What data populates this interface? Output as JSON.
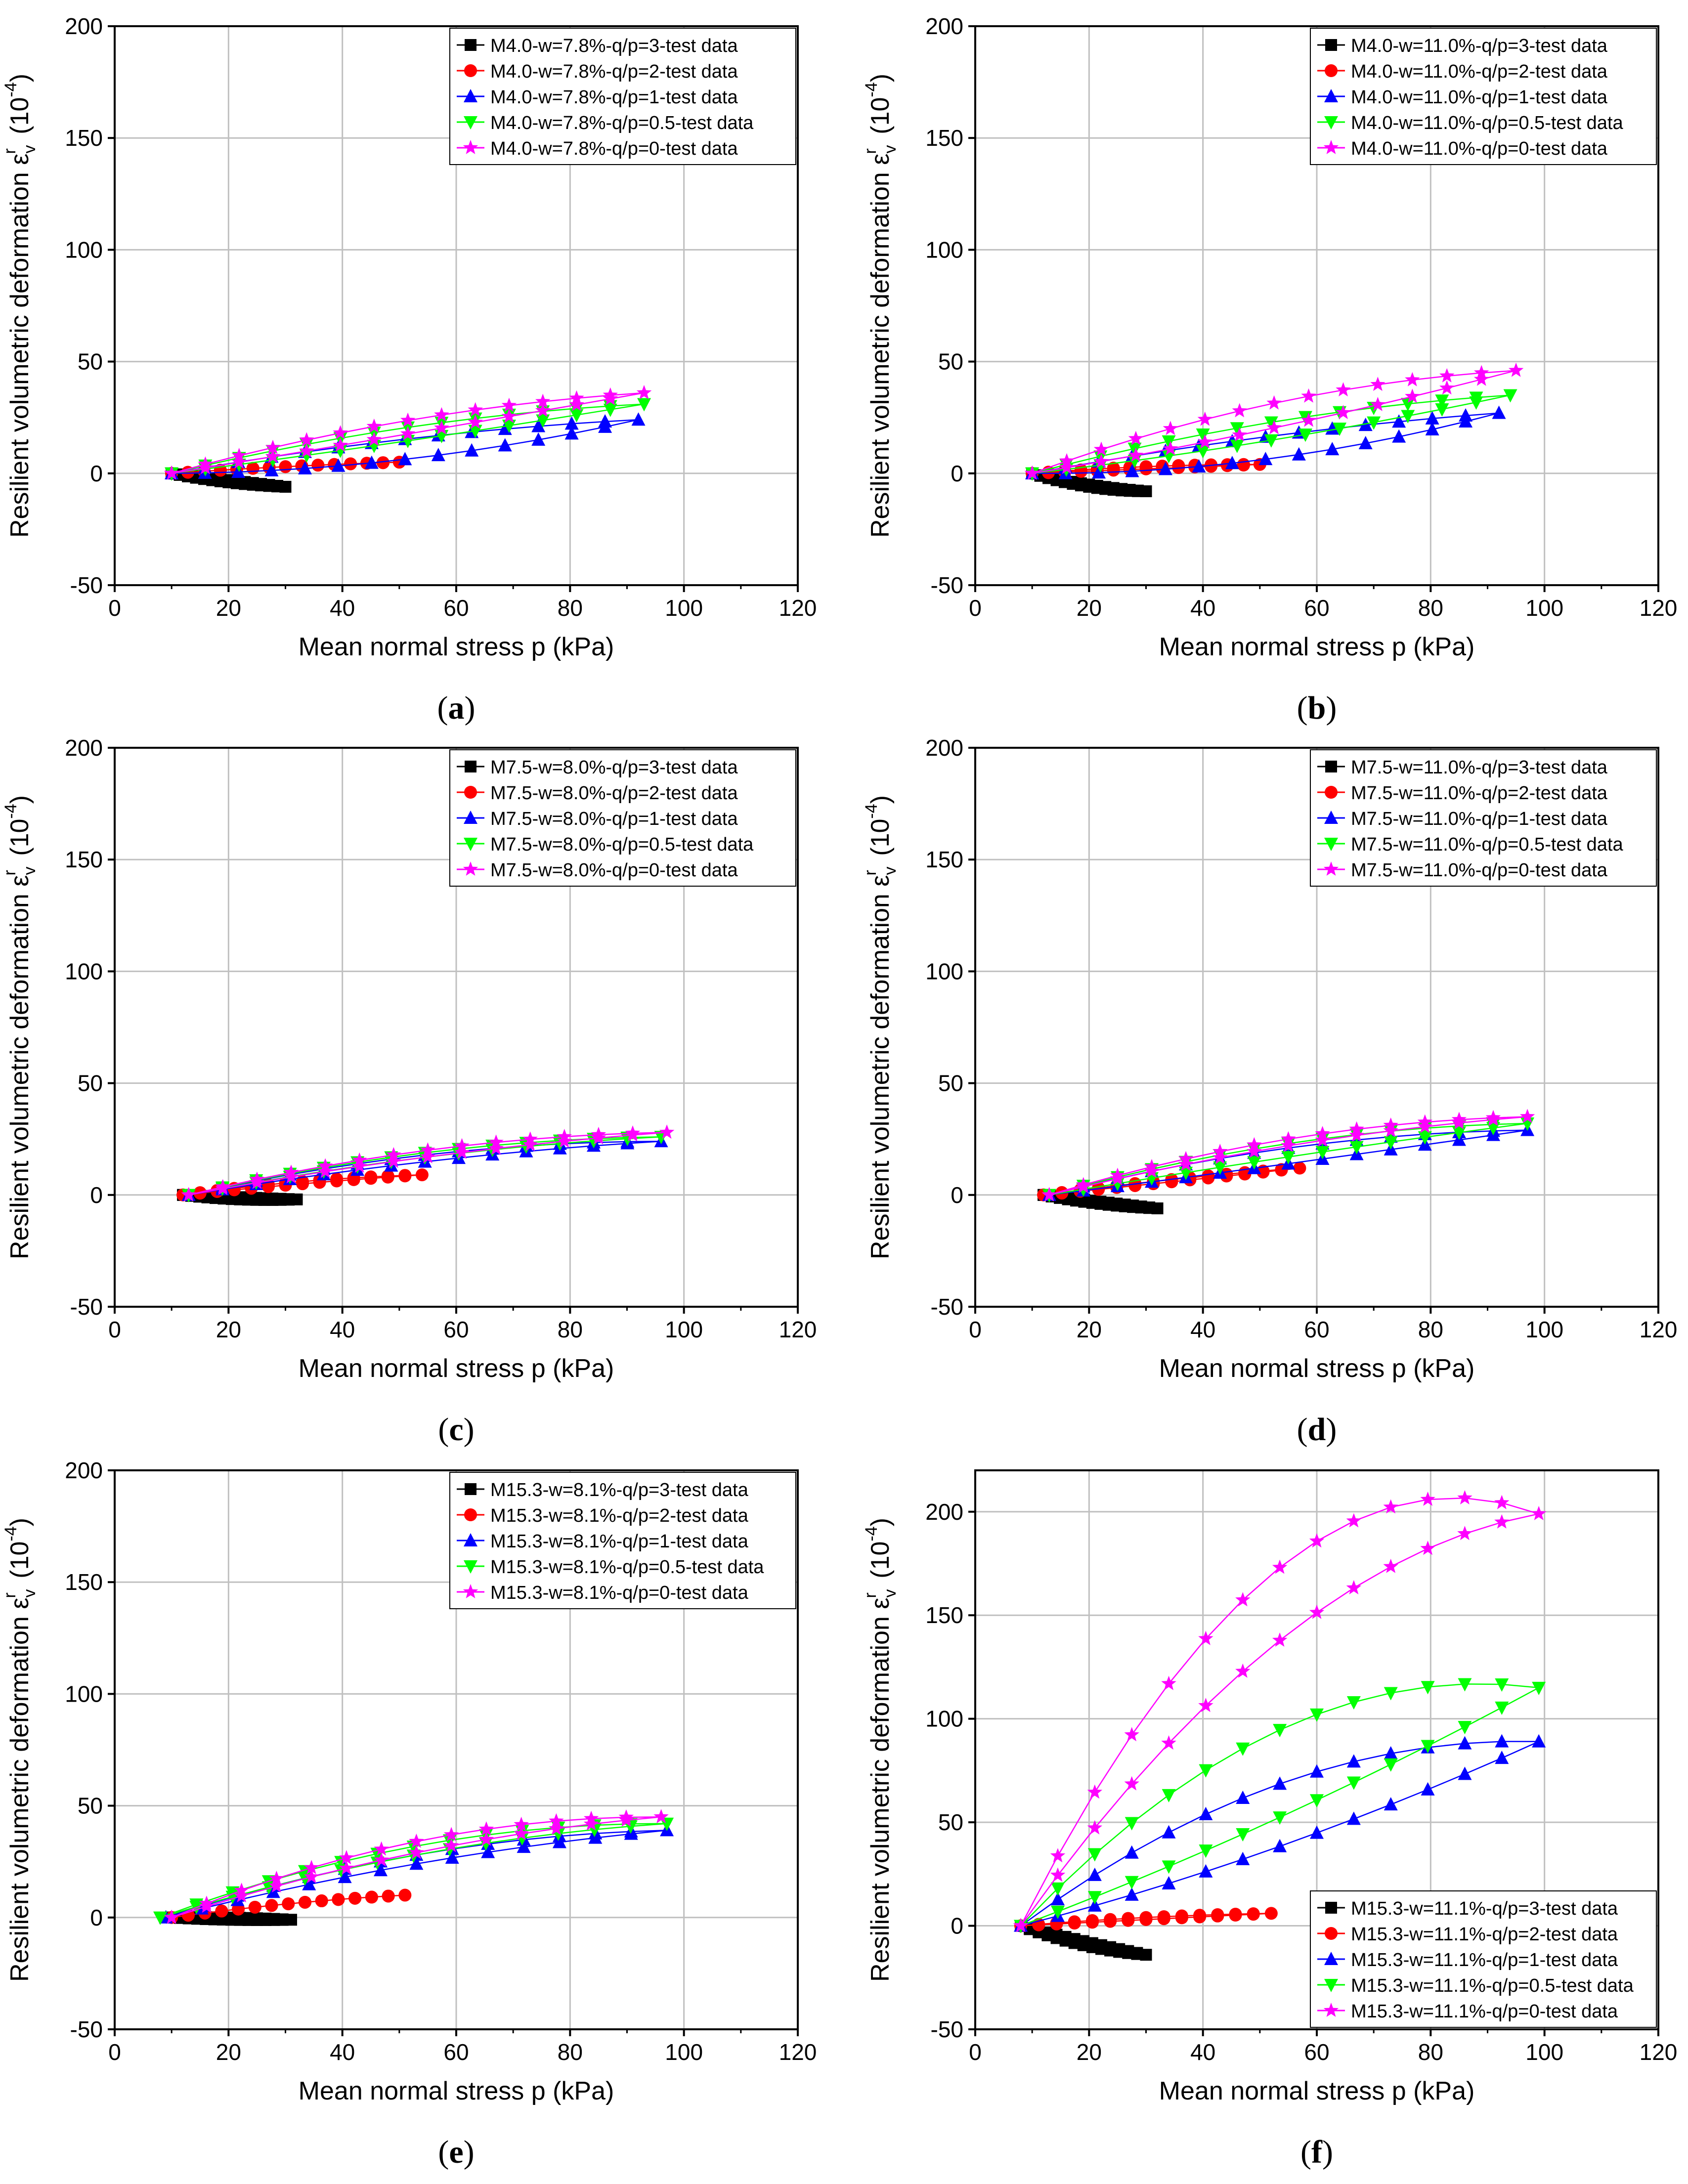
{
  "figure": {
    "panel_label_open": "(",
    "panel_label_close": ")"
  },
  "colors": {
    "q3": "#000000",
    "q2": "#ff0000",
    "q1": "#0000ff",
    "q05": "#00ff00",
    "q0": "#ff00ff",
    "grid": "#c0c0c0",
    "axis": "#000000"
  },
  "chart_data": [
    {
      "panel": "a",
      "type": "line",
      "title": "",
      "xlabel": "Mean normal stress p (kPa)",
      "ylabel": "Resilient volumetric deformation ε_v^r (10^-4)",
      "ylabel_main": "Resilient volumetric deformation ε",
      "ylabel_sub": "v",
      "ylabel_sup": "r",
      "ylabel_unit": "(10",
      "ylabel_exp": "-4",
      "ylabel_close": ")",
      "xlim": [
        0,
        120
      ],
      "ylim": [
        -50,
        200
      ],
      "xticks": [
        "0",
        "20",
        "40",
        "60",
        "80",
        "100",
        "120"
      ],
      "yticks": [
        "-50",
        "0",
        "50",
        "100",
        "150",
        "200"
      ],
      "grid": true,
      "legend_position": "top-right",
      "series": [
        {
          "name": "M4.0-w=7.8%-q/p=3-test data",
          "marker": "square",
          "color": "#000000",
          "x": [
            10,
            20,
            30
          ],
          "load": [
            0,
            -4,
            -6
          ],
          "unload": [
            0,
            -3,
            -6
          ]
        },
        {
          "name": "M4.0-w=7.8%-q/p=2-test data",
          "marker": "circle",
          "color": "#ff0000",
          "x": [
            10,
            30,
            50
          ],
          "load": [
            0,
            3,
            5
          ],
          "unload": [
            0,
            3,
            5
          ]
        },
        {
          "name": "M4.0-w=7.8%-q/p=1-test data",
          "marker": "triangle-up",
          "color": "#0000ff",
          "x": [
            10,
            50,
            92
          ],
          "load": [
            0,
            6,
            24
          ],
          "unload": [
            0,
            15,
            24
          ]
        },
        {
          "name": "M4.0-w=7.8%-q/p=0.5-test data",
          "marker": "triangle-down",
          "color": "#00ff00",
          "x": [
            10,
            50,
            93
          ],
          "load": [
            0,
            14,
            31
          ],
          "unload": [
            0,
            20,
            31
          ]
        },
        {
          "name": "M4.0-w=7.8%-q/p=0-test data",
          "marker": "star",
          "color": "#ff00ff",
          "x": [
            10,
            50,
            93
          ],
          "load": [
            0,
            17,
            36
          ],
          "unload": [
            0,
            23,
            36
          ]
        }
      ]
    },
    {
      "panel": "b",
      "type": "line",
      "title": "",
      "xlabel": "Mean normal stress p (kPa)",
      "ylabel": "Resilient volumetric deformation ε_v^r (10^-4)",
      "ylabel_main": "Resilient volumetric deformation ε",
      "ylabel_sub": "v",
      "ylabel_sup": "r",
      "ylabel_unit": "(10",
      "ylabel_exp": "-4",
      "ylabel_close": ")",
      "xlim": [
        0,
        120
      ],
      "ylim": [
        -50,
        200
      ],
      "xticks": [
        "0",
        "20",
        "40",
        "60",
        "80",
        "100",
        "120"
      ],
      "yticks": [
        "-50",
        "0",
        "50",
        "100",
        "150",
        "200"
      ],
      "grid": true,
      "legend_position": "top-right",
      "series": [
        {
          "name": "M4.0-w=11.0%-q/p=3-test data",
          "marker": "square",
          "color": "#000000",
          "x": [
            10,
            20,
            30
          ],
          "load": [
            0,
            -6,
            -8
          ],
          "unload": [
            0,
            -5,
            -8
          ]
        },
        {
          "name": "M4.0-w=11.0%-q/p=2-test data",
          "marker": "circle",
          "color": "#ff0000",
          "x": [
            10,
            30,
            50
          ],
          "load": [
            0,
            2,
            4
          ],
          "unload": [
            0,
            3,
            4
          ]
        },
        {
          "name": "M4.0-w=11.0%-q/p=1-test data",
          "marker": "triangle-up",
          "color": "#0000ff",
          "x": [
            10,
            50,
            92
          ],
          "load": [
            0,
            6,
            27
          ],
          "unload": [
            0,
            16,
            27
          ]
        },
        {
          "name": "M4.0-w=11.0%-q/p=0.5-test data",
          "marker": "triangle-down",
          "color": "#00ff00",
          "x": [
            10,
            50,
            94
          ],
          "load": [
            0,
            14,
            35
          ],
          "unload": [
            0,
            22,
            35
          ]
        },
        {
          "name": "M4.0-w=11.0%-q/p=0-test data",
          "marker": "star",
          "color": "#ff00ff",
          "x": [
            10,
            50,
            95
          ],
          "load": [
            0,
            19,
            46
          ],
          "unload": [
            0,
            30,
            46
          ]
        }
      ]
    },
    {
      "panel": "c",
      "type": "line",
      "title": "",
      "xlabel": "Mean normal stress p (kPa)",
      "ylabel": "Resilient volumetric deformation ε_v^r (10^-4)",
      "ylabel_main": "Resilient volumetric deformation ε",
      "ylabel_sub": "v",
      "ylabel_sup": "r",
      "ylabel_unit": "(10",
      "ylabel_exp": "-4",
      "ylabel_close": ")",
      "xlim": [
        0,
        120
      ],
      "ylim": [
        -50,
        200
      ],
      "xticks": [
        "0",
        "20",
        "40",
        "60",
        "80",
        "100",
        "120"
      ],
      "yticks": [
        "-50",
        "0",
        "50",
        "100",
        "150",
        "200"
      ],
      "grid": true,
      "legend_position": "top-right",
      "series": [
        {
          "name": "M7.5-w=8.0%-q/p=3-test data",
          "marker": "square",
          "color": "#000000",
          "x": [
            12,
            22,
            32
          ],
          "load": [
            0,
            -2,
            -2
          ],
          "unload": [
            0,
            -1,
            -2
          ]
        },
        {
          "name": "M7.5-w=8.0%-q/p=2-test data",
          "marker": "circle",
          "color": "#ff0000",
          "x": [
            12,
            33,
            54
          ],
          "load": [
            0,
            5,
            9
          ],
          "unload": [
            0,
            6,
            9
          ]
        },
        {
          "name": "M7.5-w=8.0%-q/p=1-test data",
          "marker": "triangle-up",
          "color": "#0000ff",
          "x": [
            13,
            55,
            96
          ],
          "load": [
            0,
            15,
            24
          ],
          "unload": [
            0,
            18,
            24
          ]
        },
        {
          "name": "M7.5-w=8.0%-q/p=0.5-test data",
          "marker": "triangle-down",
          "color": "#00ff00",
          "x": [
            13,
            55,
            96
          ],
          "load": [
            0,
            17,
            26
          ],
          "unload": [
            0,
            19,
            26
          ]
        },
        {
          "name": "M7.5-w=8.0%-q/p=0-test data",
          "marker": "star",
          "color": "#ff00ff",
          "x": [
            13,
            55,
            97
          ],
          "load": [
            0,
            17,
            28
          ],
          "unload": [
            0,
            20,
            28
          ]
        }
      ]
    },
    {
      "panel": "d",
      "type": "line",
      "title": "",
      "xlabel": "Mean normal stress p (kPa)",
      "ylabel": "Resilient volumetric deformation ε_v^r (10^-4)",
      "ylabel_main": "Resilient volumetric deformation ε",
      "ylabel_sub": "v",
      "ylabel_sup": "r",
      "ylabel_unit": "(10",
      "ylabel_exp": "-4",
      "ylabel_close": ")",
      "xlim": [
        0,
        120
      ],
      "ylim": [
        -50,
        200
      ],
      "xticks": [
        "0",
        "20",
        "40",
        "60",
        "80",
        "100",
        "120"
      ],
      "yticks": [
        "-50",
        "0",
        "50",
        "100",
        "150",
        "200"
      ],
      "grid": true,
      "legend_position": "top-right",
      "series": [
        {
          "name": "M7.5-w=11.0%-q/p=3-test data",
          "marker": "square",
          "color": "#000000",
          "x": [
            12,
            22,
            32
          ],
          "load": [
            0,
            -4,
            -6
          ],
          "unload": [
            0,
            -3,
            -6
          ]
        },
        {
          "name": "M7.5-w=11.0%-q/p=2-test data",
          "marker": "circle",
          "color": "#ff0000",
          "x": [
            12,
            35,
            57
          ],
          "load": [
            0,
            6,
            12
          ],
          "unload": [
            0,
            7,
            12
          ]
        },
        {
          "name": "M7.5-w=11.0%-q/p=1-test data",
          "marker": "triangle-up",
          "color": "#0000ff",
          "x": [
            13,
            55,
            97
          ],
          "load": [
            0,
            14,
            29
          ],
          "unload": [
            0,
            21,
            29
          ]
        },
        {
          "name": "M7.5-w=11.0%-q/p=0.5-test data",
          "marker": "triangle-down",
          "color": "#00ff00",
          "x": [
            13,
            55,
            97
          ],
          "load": [
            0,
            17,
            32
          ],
          "unload": [
            0,
            23,
            32
          ]
        },
        {
          "name": "M7.5-w=11.0%-q/p=0-test data",
          "marker": "star",
          "color": "#ff00ff",
          "x": [
            13,
            55,
            97
          ],
          "load": [
            0,
            22,
            35
          ],
          "unload": [
            0,
            25,
            35
          ]
        }
      ]
    },
    {
      "panel": "e",
      "type": "line",
      "title": "",
      "xlabel": "Mean normal stress p (kPa)",
      "ylabel": "Resilient volumetric deformation ε_v^r (10^-4)",
      "ylabel_main": "Resilient volumetric deformation ε",
      "ylabel_sub": "v",
      "ylabel_sup": "r",
      "ylabel_unit": "(10",
      "ylabel_exp": "-4",
      "ylabel_close": ")",
      "xlim": [
        0,
        120
      ],
      "ylim": [
        -50,
        200
      ],
      "xticks": [
        "0",
        "20",
        "40",
        "60",
        "80",
        "100",
        "120"
      ],
      "yticks": [
        "-50",
        "0",
        "50",
        "100",
        "150",
        "200"
      ],
      "grid": true,
      "legend_position": "top-right",
      "series": [
        {
          "name": "M15.3-w=8.1%-q/p=3-test data",
          "marker": "square",
          "color": "#000000",
          "x": [
            10,
            20,
            31
          ],
          "load": [
            0,
            -1,
            -1
          ],
          "unload": [
            0,
            0,
            -1
          ]
        },
        {
          "name": "M15.3-w=8.1%-q/p=2-test data",
          "marker": "circle",
          "color": "#ff0000",
          "x": [
            10,
            30,
            51
          ],
          "load": [
            0,
            6,
            10
          ],
          "unload": [
            0,
            6,
            10
          ]
        },
        {
          "name": "M15.3-w=8.1%-q/p=1-test data",
          "marker": "triangle-up",
          "color": "#0000ff",
          "x": [
            9,
            53,
            97
          ],
          "load": [
            0,
            24,
            39
          ],
          "unload": [
            0,
            28,
            39
          ]
        },
        {
          "name": "M15.3-w=8.1%-q/p=0.5-test data",
          "marker": "triangle-down",
          "color": "#00ff00",
          "x": [
            8,
            53,
            97
          ],
          "load": [
            0,
            28,
            42
          ],
          "unload": [
            0,
            32,
            42
          ]
        },
        {
          "name": "M15.3-w=8.1%-q/p=0-test data",
          "marker": "star",
          "color": "#ff00ff",
          "x": [
            10,
            53,
            96
          ],
          "load": [
            0,
            29,
            45
          ],
          "unload": [
            0,
            34,
            45
          ]
        }
      ]
    },
    {
      "panel": "f",
      "type": "line",
      "title": "",
      "xlabel": "Mean normal stress p (kPa)",
      "ylabel": "Resilient volumetric deformation ε_v^r (10^-4)",
      "ylabel_main": "Resilient volumetric deformation ε",
      "ylabel_sub": "v",
      "ylabel_sup": "r",
      "ylabel_unit": "(10",
      "ylabel_exp": "-4",
      "ylabel_close": ")",
      "xlim": [
        0,
        120
      ],
      "ylim": [
        -50,
        220
      ],
      "xticks": [
        "0",
        "20",
        "40",
        "60",
        "80",
        "100",
        "120"
      ],
      "yticks": [
        "-50",
        "0",
        "50",
        "100",
        "150",
        "200"
      ],
      "grid": true,
      "legend_position": "bottom-right",
      "series": [
        {
          "name": "M15.3-w=11.1%-q/p=3-test data",
          "marker": "square",
          "color": "#000000",
          "x": [
            8,
            20,
            30
          ],
          "load": [
            0,
            -10,
            -14
          ],
          "unload": [
            0,
            -8,
            -14
          ]
        },
        {
          "name": "M15.3-w=11.1%-q/p=2-test data",
          "marker": "circle",
          "color": "#ff0000",
          "x": [
            8,
            30,
            52
          ],
          "load": [
            0,
            3,
            6
          ],
          "unload": [
            0,
            4,
            6
          ]
        },
        {
          "name": "M15.3-w=11.1%-q/p=1-test data",
          "marker": "triangle-up",
          "color": "#0000ff",
          "x": [
            8,
            50,
            99
          ],
          "load": [
            0,
            35,
            89
          ],
          "unload": [
            0,
            65,
            89
          ]
        },
        {
          "name": "M15.3-w=11.1%-q/p=0.5-test data",
          "marker": "triangle-down",
          "color": "#00ff00",
          "x": [
            8,
            50,
            99
          ],
          "load": [
            0,
            48,
            115
          ],
          "unload": [
            0,
            90,
            115
          ]
        },
        {
          "name": "M15.3-w=11.1%-q/p=0-test data",
          "marker": "star",
          "color": "#ff00ff",
          "x": [
            8,
            50,
            99
          ],
          "load": [
            0,
            130,
            199
          ],
          "unload": [
            0,
            165,
            199
          ]
        }
      ]
    }
  ]
}
